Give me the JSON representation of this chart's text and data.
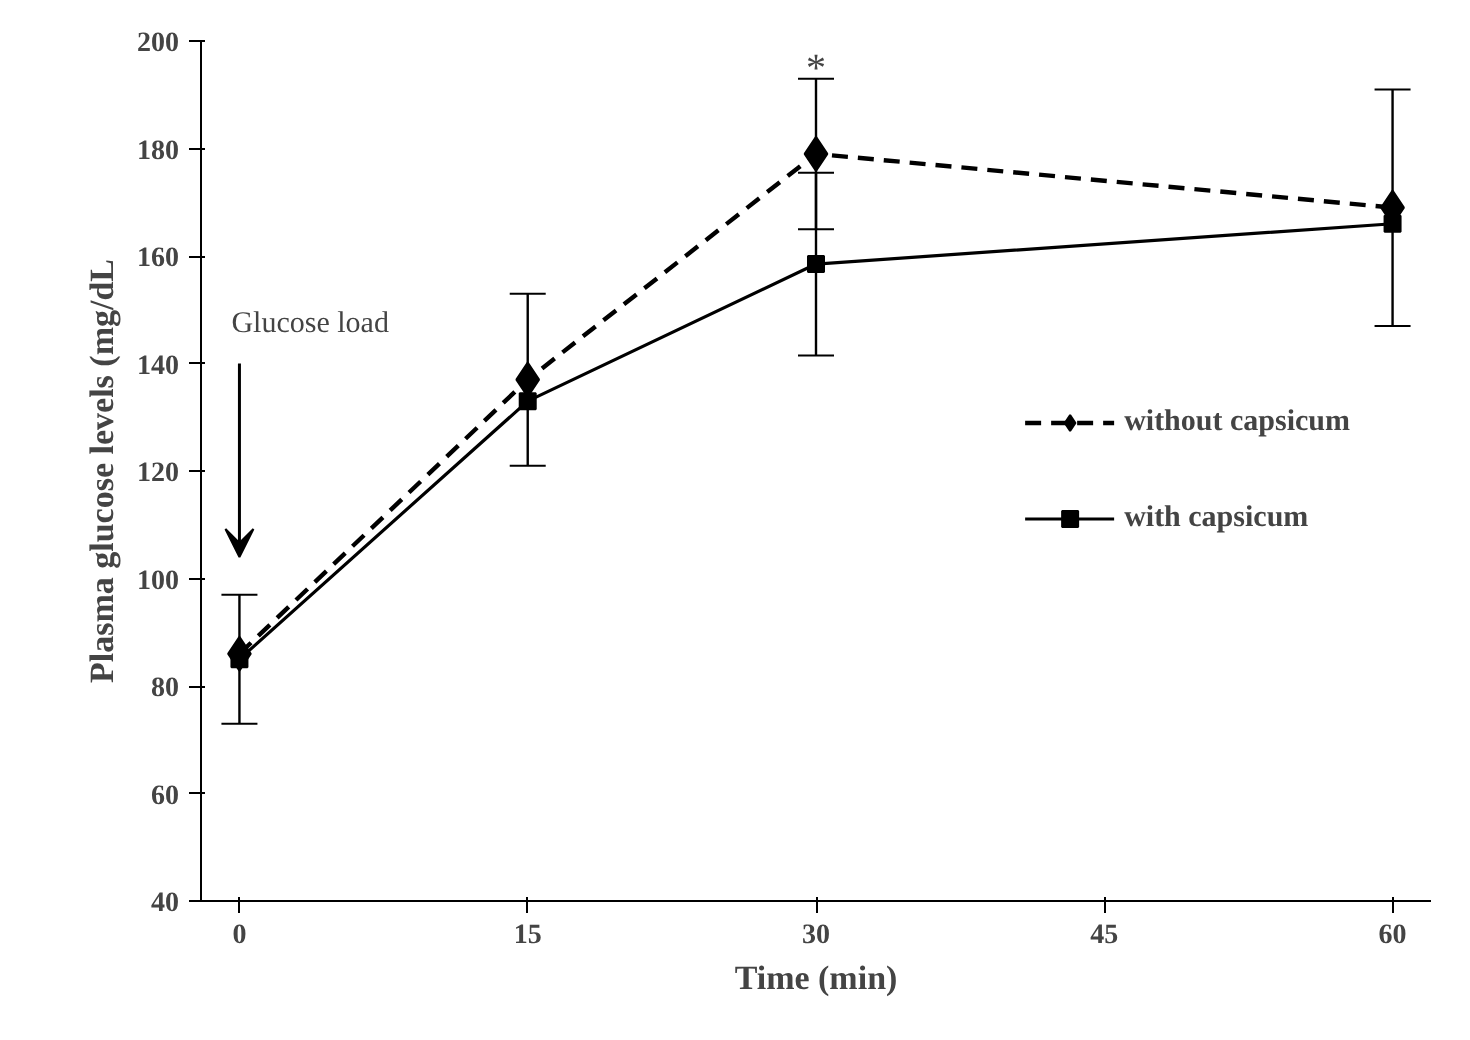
{
  "chart_data": {
    "type": "line",
    "xlabel": "Time (min)",
    "ylabel": "Plasma glucose levels (mg/dL",
    "x": [
      0,
      15,
      30,
      60
    ],
    "xlim": [
      -2,
      62
    ],
    "xticks": [
      0,
      15,
      30,
      45,
      60
    ],
    "ylim": [
      40,
      200
    ],
    "yticks": [
      40,
      60,
      80,
      100,
      120,
      140,
      160,
      180,
      200
    ],
    "grid": false,
    "legend": "right",
    "series": [
      {
        "name": "without capsicum",
        "color": "#000000",
        "marker": "diamond",
        "line_style": "dashed",
        "values": [
          86,
          137,
          179,
          169
        ],
        "errors": [
          null,
          16,
          14,
          22
        ]
      },
      {
        "name": "with capsicum",
        "color": "#000000",
        "marker": "square",
        "line_style": "solid",
        "values": [
          85,
          133,
          158.5,
          166
        ],
        "errors": [
          12,
          null,
          17,
          null
        ]
      }
    ],
    "annotations": [
      "Glucose load",
      {
        "text": "*",
        "x": 30,
        "y": 193
      }
    ]
  }
}
